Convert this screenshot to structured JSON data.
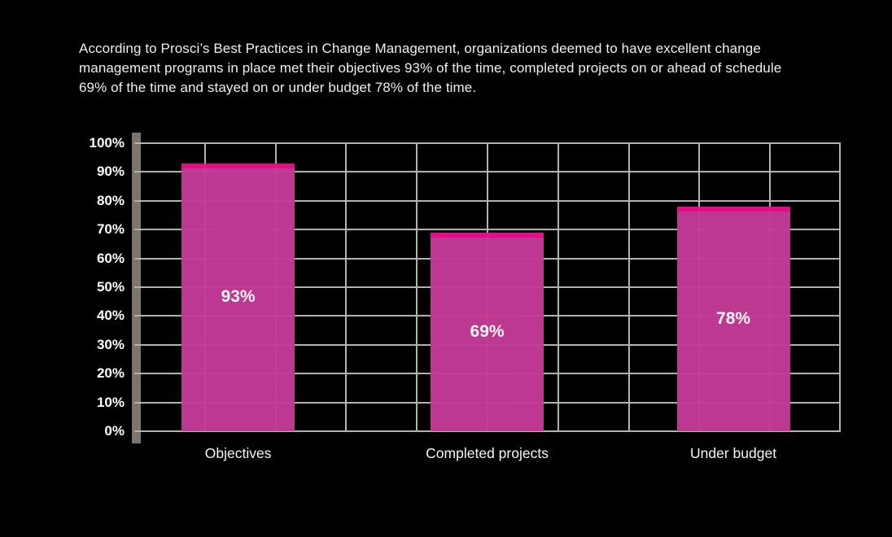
{
  "description": "According to Prosci’s Best Practices in Change Management, organizations deemed to have excellent change management programs in place met their objectives 93% of the time, completed projects on or ahead of schedule 69% of the time and stayed on or under budget 78% of the time.",
  "description_lines": [
    "According to Prosci’s Best Practices in Change Management, organizations deemed to have excellent change",
    "management programs in place met their objectives 93% of the time, completed projects on or ahead of schedule",
    "69% of the time and stayed on or under budget 78% of the time."
  ],
  "chart_data": {
    "type": "bar",
    "title": "",
    "xlabel": "",
    "ylabel": "",
    "categories": [
      "Objectives",
      "Completed projects",
      "Under budget"
    ],
    "values": [
      93,
      69,
      78
    ],
    "value_labels": [
      "93%",
      "69%",
      "78%"
    ],
    "ylim": [
      0,
      100
    ],
    "ytick_labels": [
      "0%",
      "10%",
      "20%",
      "30%",
      "40%",
      "50%",
      "60%",
      "70%",
      "80%",
      "90%",
      "100%"
    ],
    "grid": "both",
    "legend": "none",
    "colors": {
      "background": "#000000",
      "bar_body": "#c43b97",
      "bar_cap": "#ed0e90",
      "gridline": "#b4b1ae",
      "axis_bar": "#7c756e",
      "text": "#efefef",
      "tick_text": "#ffffff",
      "value_text": "#ffffff"
    }
  }
}
